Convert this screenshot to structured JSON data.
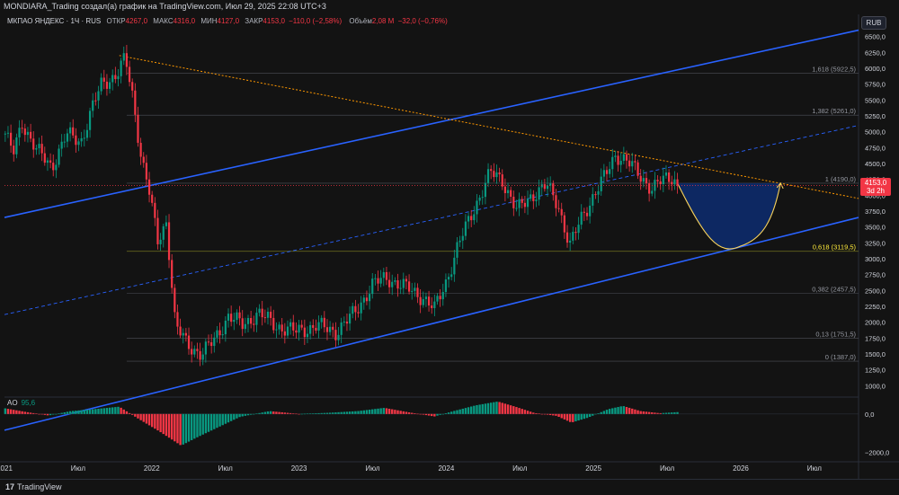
{
  "window": {
    "caption": "MONDIARA_Trading создал(а) график на TradingView.com, Июл 29, 2025 22:08 UTC+3"
  },
  "legend": {
    "symbol": "МКПАО ЯНДЕКС · 1Ч · RUS",
    "open_label": "ОТКР",
    "open": "4267,0",
    "high_label": "МАКС",
    "high": "4316,0",
    "low_label": "МИН",
    "low": "4127,0",
    "close_label": "ЗАКР",
    "close": "4153,0",
    "change": "−110,0 (−2,58%)",
    "volume_label": "Объём",
    "volume": "2,08 М",
    "volume_change": "−32,0 (−0,76%)"
  },
  "currency": "RUB",
  "price_tag": {
    "price": "4153,0",
    "countdown": "3d 2h"
  },
  "ao_legend": {
    "name": "AO",
    "value": "95,6"
  },
  "footer": {
    "logo_glyph": "17",
    "brand": "TradingView"
  },
  "colors": {
    "background": "#131313",
    "up": "#089981",
    "down": "#f23645",
    "channel": "#2962ff",
    "trendline": "#ff9800",
    "projection_fill": "#0d2b6b",
    "projection_stroke": "#f7d25c",
    "fib_line": "#5d606b",
    "fib_key": "#ffeb3b",
    "text": "#d1d4dc"
  },
  "chart_data": {
    "type": "candlestick",
    "title": "МКПАО ЯНДЕКС · 1Ч · RUS",
    "y_axis": {
      "range": [
        850,
        6650
      ],
      "ticks": [
        1000,
        1250,
        1500,
        1750,
        2000,
        2250,
        2500,
        2750,
        3000,
        3250,
        3500,
        3750,
        4000,
        4250,
        4500,
        4750,
        5000,
        5250,
        5500,
        5750,
        6000,
        6250,
        6500
      ],
      "tick_labels": [
        "1000,0",
        "1250,0",
        "1500,0",
        "1750,0",
        "2000,0",
        "2250,0",
        "2500,0",
        "2750,0",
        "3000,0",
        "3250,0",
        "3500,0",
        "3750,0",
        "4000,0",
        "4250,0",
        "4500,0",
        "4750,0",
        "5000,0",
        "5250,0",
        "5500,0",
        "5750,0",
        "6000,0",
        "6250,0",
        "6500,0"
      ]
    },
    "x_axis": {
      "range": [
        2021.0,
        2026.8
      ],
      "ticks": [
        2021.0,
        2021.5,
        2022.0,
        2022.5,
        2023.0,
        2023.5,
        2024.0,
        2024.5,
        2025.0,
        2025.5,
        2026.0,
        2026.5
      ],
      "tick_labels": [
        "2021",
        "Июл",
        "2022",
        "Июл",
        "2023",
        "Июл",
        "2024",
        "Июл",
        "2025",
        "Июл",
        "2026",
        "Июл"
      ]
    },
    "price_anchors": [
      [
        2021.0,
        5000
      ],
      [
        2021.06,
        4650
      ],
      [
        2021.12,
        5150
      ],
      [
        2021.22,
        4700
      ],
      [
        2021.32,
        4450
      ],
      [
        2021.42,
        4950
      ],
      [
        2021.52,
        4850
      ],
      [
        2021.6,
        5400
      ],
      [
        2021.66,
        5750
      ],
      [
        2021.76,
        5900
      ],
      [
        2021.82,
        6150
      ],
      [
        2021.87,
        5550
      ],
      [
        2021.93,
        4600
      ],
      [
        2021.98,
        4100
      ],
      [
        2022.04,
        3250
      ],
      [
        2022.1,
        3600
      ],
      [
        2022.16,
        1950
      ],
      [
        2022.24,
        1650
      ],
      [
        2022.34,
        1500
      ],
      [
        2022.42,
        1700
      ],
      [
        2022.52,
        2100
      ],
      [
        2022.62,
        1950
      ],
      [
        2022.72,
        2150
      ],
      [
        2022.84,
        1950
      ],
      [
        2022.98,
        1850
      ],
      [
        2023.12,
        1950
      ],
      [
        2023.25,
        1850
      ],
      [
        2023.38,
        2150
      ],
      [
        2023.5,
        2600
      ],
      [
        2023.6,
        2700
      ],
      [
        2023.72,
        2550
      ],
      [
        2023.84,
        2400
      ],
      [
        2023.92,
        2200
      ],
      [
        2024.0,
        2650
      ],
      [
        2024.08,
        3200
      ],
      [
        2024.18,
        3750
      ],
      [
        2024.3,
        4350
      ],
      [
        2024.38,
        4250
      ],
      [
        2024.48,
        3750
      ],
      [
        2024.58,
        4000
      ],
      [
        2024.68,
        4150
      ],
      [
        2024.76,
        3850
      ],
      [
        2024.84,
        3200
      ],
      [
        2024.92,
        3650
      ],
      [
        2025.0,
        4000
      ],
      [
        2025.08,
        4300
      ],
      [
        2025.15,
        4650
      ],
      [
        2025.22,
        4550
      ],
      [
        2025.3,
        4350
      ],
      [
        2025.4,
        4100
      ],
      [
        2025.48,
        4250
      ],
      [
        2025.54,
        4300
      ],
      [
        2025.57,
        4153
      ]
    ],
    "last_close": 4153,
    "fib_levels": [
      {
        "ratio": "1,618",
        "price": 5922.5,
        "label": "1,618 (5922,5)"
      },
      {
        "ratio": "1,382",
        "price": 5261.0,
        "label": "1,382 (5261,0)"
      },
      {
        "ratio": "1",
        "price": 4190.0,
        "label": "1 (4190,0)"
      },
      {
        "ratio": "0,618",
        "price": 3119.5,
        "label": "0,618 (3119,5)",
        "highlight": true
      },
      {
        "ratio": "0,382",
        "price": 2457.5,
        "label": "0,382 (2457,5)"
      },
      {
        "ratio": "0,13",
        "price": 1751.5,
        "label": "0,13 (1751,5)"
      },
      {
        "ratio": "0",
        "price": 1387.0,
        "label": "0 (1387,0)"
      }
    ],
    "channel": {
      "upper": [
        [
          2021.0,
          3650
        ],
        [
          2026.8,
          6600
        ]
      ],
      "middle": [
        [
          2021.0,
          2120
        ],
        [
          2026.8,
          5100
        ]
      ],
      "lower": [
        [
          2021.0,
          300
        ],
        [
          2026.8,
          3650
        ]
      ]
    },
    "trendline": [
      [
        2021.78,
        6200
      ],
      [
        2026.8,
        3950
      ]
    ],
    "projection": {
      "start": [
        2025.57,
        4190
      ],
      "bottom": [
        2026.0,
        3200
      ],
      "end": [
        2026.27,
        4190
      ]
    },
    "ao": {
      "name": "AO",
      "y_ticks": [
        0,
        -2000
      ],
      "y_tick_labels": [
        "0,0",
        "−2000,0"
      ],
      "range": [
        -2400,
        600
      ],
      "anchors": [
        [
          2021.0,
          300
        ],
        [
          2021.15,
          100
        ],
        [
          2021.3,
          -80
        ],
        [
          2021.45,
          150
        ],
        [
          2021.62,
          260
        ],
        [
          2021.78,
          380
        ],
        [
          2021.92,
          -300
        ],
        [
          2022.05,
          -900
        ],
        [
          2022.2,
          -1650
        ],
        [
          2022.3,
          -1250
        ],
        [
          2022.45,
          -700
        ],
        [
          2022.6,
          -150
        ],
        [
          2022.8,
          150
        ],
        [
          2023.0,
          0
        ],
        [
          2023.2,
          60
        ],
        [
          2023.4,
          150
        ],
        [
          2023.58,
          320
        ],
        [
          2023.75,
          80
        ],
        [
          2023.92,
          -130
        ],
        [
          2024.05,
          150
        ],
        [
          2024.2,
          450
        ],
        [
          2024.35,
          650
        ],
        [
          2024.47,
          380
        ],
        [
          2024.6,
          50
        ],
        [
          2024.75,
          -100
        ],
        [
          2024.85,
          -450
        ],
        [
          2024.96,
          -200
        ],
        [
          2025.1,
          250
        ],
        [
          2025.2,
          420
        ],
        [
          2025.32,
          150
        ],
        [
          2025.45,
          40
        ],
        [
          2025.57,
          95.6
        ]
      ]
    }
  }
}
